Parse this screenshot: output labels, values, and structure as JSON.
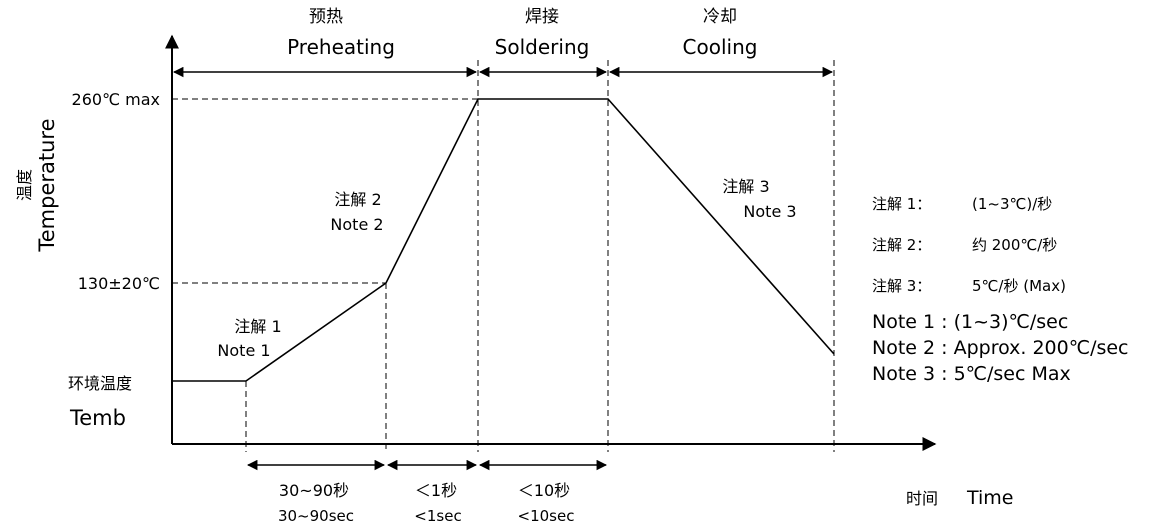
{
  "axes": {
    "y_label_cn": "温度",
    "y_label_en": "Temperature",
    "x_label_cn": "时间",
    "x_label_en": "Time"
  },
  "levels": {
    "peak": "260℃ max",
    "preheat": "130±20℃",
    "ambient_cn": "环境温度",
    "ambient_en": "Temb"
  },
  "phases": {
    "preheating_cn": "预热",
    "preheating_en": "Preheating",
    "soldering_cn": "焊接",
    "soldering_en": "Soldering",
    "cooling_cn": "冷却",
    "cooling_en": "Cooling"
  },
  "curve_notes": {
    "note1_cn": "注解 1",
    "note1_en": "Note 1",
    "note2_cn": "注解 2",
    "note2_en": "Note 2",
    "note3_cn": "注解 3",
    "note3_en": "Note 3"
  },
  "durations": {
    "d1_cn": "30~90秒",
    "d1_en": "30~90sec",
    "d2_cn": "＜1秒",
    "d2_en": "<1sec",
    "d3_cn": "＜10秒",
    "d3_en": "<10sec"
  },
  "legend": {
    "cn": [
      {
        "key": "注解 1：",
        "value": "(1~3℃)/秒"
      },
      {
        "key": "注解 2：",
        "value": "约 200℃/秒"
      },
      {
        "key": "注解 3：",
        "value": "5℃/秒  (Max)"
      }
    ],
    "en": [
      "Note 1 : (1~3)℃/sec",
      "Note 2 : Approx. 200℃/sec",
      "Note 3 : 5℃/sec  Max"
    ]
  }
}
